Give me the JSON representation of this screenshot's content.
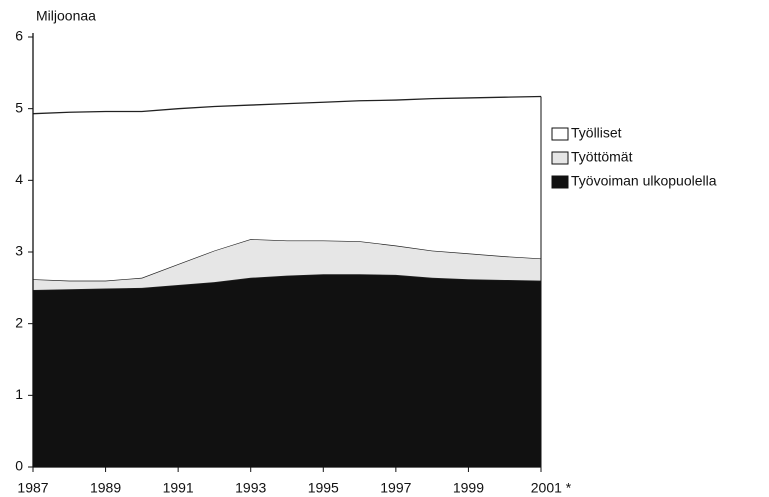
{
  "chart_data": {
    "type": "stacked_area",
    "ylabel": "Miljoonaa",
    "x": [
      1987,
      1988,
      1989,
      1990,
      1991,
      1992,
      1993,
      1994,
      1995,
      1996,
      1997,
      1998,
      1999,
      2000,
      2001
    ],
    "series": [
      {
        "name": "Työlliset",
        "color": "#ffffff",
        "values": [
          2.31,
          2.35,
          2.36,
          2.32,
          2.17,
          2.01,
          1.87,
          1.91,
          1.93,
          1.96,
          2.03,
          2.12,
          2.17,
          2.22,
          2.26
        ]
      },
      {
        "name": "Työttömät",
        "color": "#e6e6e6",
        "values": [
          0.15,
          0.12,
          0.11,
          0.14,
          0.29,
          0.44,
          0.54,
          0.49,
          0.47,
          0.46,
          0.41,
          0.38,
          0.36,
          0.33,
          0.31
        ]
      },
      {
        "name": "Työvoiman ulkopuolella",
        "color": "#111111",
        "values": [
          2.47,
          2.48,
          2.49,
          2.5,
          2.54,
          2.58,
          2.64,
          2.67,
          2.69,
          2.69,
          2.68,
          2.64,
          2.62,
          2.61,
          2.6
        ]
      }
    ],
    "xlim": [
      1987,
      2001
    ],
    "xticks": [
      1987,
      1989,
      1991,
      1993,
      1995,
      1997,
      1999,
      {
        "value": 2001,
        "label": "2001 *"
      }
    ],
    "ylim": [
      0,
      6
    ],
    "yticks": [
      0,
      1,
      2,
      3,
      4,
      5,
      6
    ],
    "legend": "right"
  }
}
